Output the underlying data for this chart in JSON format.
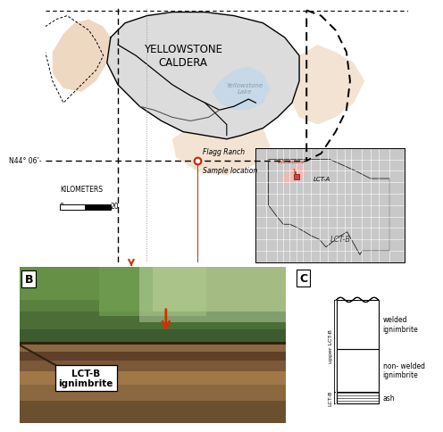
{
  "bg_color": "#f0ddc8",
  "caldera_color": "#c0c0c0",
  "caldera_alpha": 0.55,
  "lake_color": "#c5d8e8",
  "map_bg": "#ecddc8",
  "title": "YELLOWSTONE\nCALDERA",
  "title_fontsize": 8.5,
  "sample_label_line1": "Flagg Ranch",
  "sample_label_line2": "Sample location",
  "sample_color": "#cc2200",
  "lat_label": "N44° 06’-",
  "scale_label": "KILOMETERS",
  "panel_B_label": "B",
  "panel_C_label": "C",
  "lct_b_label_line1": "LCT-B",
  "lct_b_label_line2": "ignimbrite",
  "inset_yellowstone_label": "Yellowstone",
  "inset_lct_a_label": "LCT-A",
  "inset_lct_b_label": "LCT-B",
  "col_c_welded": "welded\nignimbrite",
  "col_c_nonwelded": "non- welded\nignimbrite",
  "col_c_ash": "ash",
  "col_c_upper_lct": "upper LCT-B",
  "col_c_lower": "LCT-B",
  "arrow_color": "#cc3300",
  "peach_lobe_color": "#e8c8a8",
  "inset_us_color": "#c8c8c8",
  "inset_lct_a_color": "#f5b8b0"
}
